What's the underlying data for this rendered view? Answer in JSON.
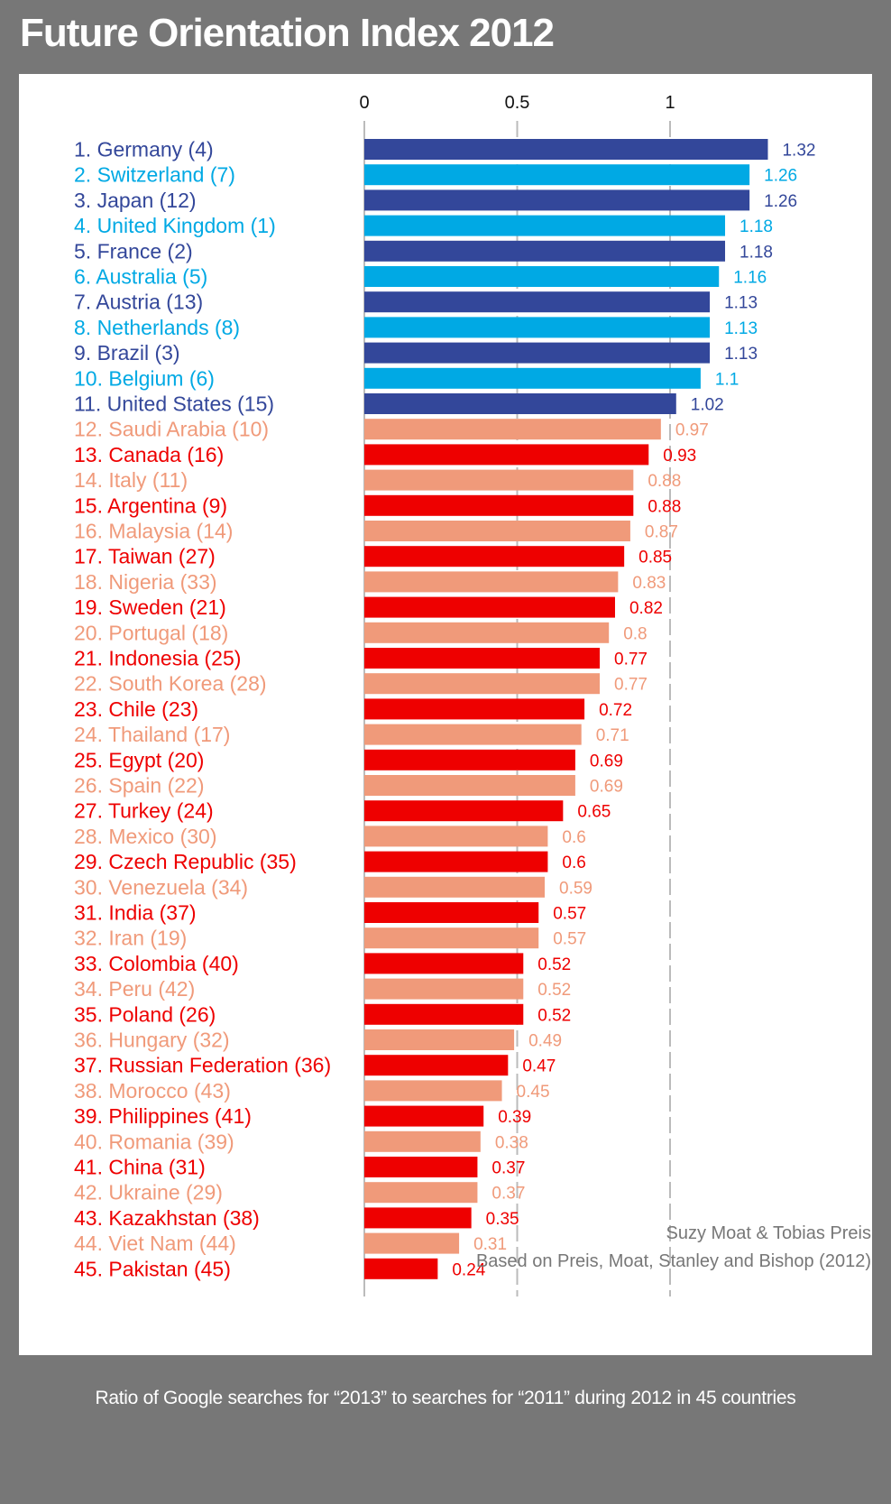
{
  "page": {
    "title": "Future Orientation Index 2012",
    "caption": "Ratio of Google searches for “2013” to searches for “2011” during 2012 in 45 countries",
    "credit_line1": "Suzy Moat & Tobias Preis",
    "credit_line2": "Based on Preis, Moat, Stanley and Bishop (2012)"
  },
  "colors": {
    "background": "#777777",
    "panel": "#ffffff",
    "top_dark": "#33479A",
    "top_light": "#00A9E4",
    "low_dark": "#EE0000",
    "low_light": "#F09A7A",
    "gridline": "#BBBBBB",
    "credit_text": "#777777"
  },
  "chart_data": {
    "type": "bar",
    "orientation": "horizontal",
    "title": "Future Orientation Index 2012",
    "subtitle": "Ratio of Google searches for “2013” to searches for “2011” during 2012 in 45 countries",
    "xlabel": "",
    "ylabel": "",
    "xlim": [
      0,
      1.35
    ],
    "xticks": [
      0,
      0.5,
      1
    ],
    "xtick_labels": [
      "0",
      "0.5",
      "1"
    ],
    "grid": "vertical dashed at ticks",
    "legend": "none",
    "note": "Number in parentheses is rank in 2010; bars above 1 shown in blue, below 1 in red; alternating shades per row",
    "categories": [
      "1. Germany (4)",
      "2. Switzerland (7)",
      "3. Japan (12)",
      "4. United Kingdom (1)",
      "5. France (2)",
      "6. Australia (5)",
      "7. Austria (13)",
      "8. Netherlands (8)",
      "9. Brazil (3)",
      "10. Belgium (6)",
      "11. United States (15)",
      "12. Saudi Arabia (10)",
      "13. Canada (16)",
      "14. Italy (11)",
      "15. Argentina (9)",
      "16. Malaysia (14)",
      "17. Taiwan (27)",
      "18. Nigeria (33)",
      "19. Sweden (21)",
      "20. Portugal (18)",
      "21. Indonesia (25)",
      "22. South Korea (28)",
      "23. Chile (23)",
      "24. Thailand (17)",
      "25. Egypt (20)",
      "26. Spain (22)",
      "27. Turkey (24)",
      "28. Mexico (30)",
      "29. Czech Republic (35)",
      "30. Venezuela (34)",
      "31. India (37)",
      "32. Iran (19)",
      "33. Colombia (40)",
      "34. Peru (42)",
      "35. Poland (26)",
      "36. Hungary (32)",
      "37. Russian Federation (36)",
      "38. Morocco (43)",
      "39. Philippines (41)",
      "40. Romania (39)",
      "41. China (31)",
      "42. Ukraine (29)",
      "43. Kazakhstan (38)",
      "44. Viet Nam (44)",
      "45. Pakistan (45)"
    ],
    "values": [
      1.32,
      1.26,
      1.26,
      1.18,
      1.18,
      1.16,
      1.13,
      1.13,
      1.13,
      1.1,
      1.02,
      0.97,
      0.93,
      0.88,
      0.88,
      0.87,
      0.85,
      0.83,
      0.82,
      0.8,
      0.77,
      0.77,
      0.72,
      0.71,
      0.69,
      0.69,
      0.65,
      0.6,
      0.6,
      0.59,
      0.57,
      0.57,
      0.52,
      0.52,
      0.52,
      0.49,
      0.47,
      0.45,
      0.39,
      0.38,
      0.37,
      0.37,
      0.35,
      0.31,
      0.24
    ],
    "value_labels": [
      "1.32",
      "1.26",
      "1.26",
      "1.18",
      "1.18",
      "1.16",
      "1.13",
      "1.13",
      "1.13",
      "1.1",
      "1.02",
      "0.97",
      "0.93",
      "0.88",
      "0.88",
      "0.87",
      "0.85",
      "0.83",
      "0.82",
      "0.8",
      "0.77",
      "0.77",
      "0.72",
      "0.71",
      "0.69",
      "0.69",
      "0.65",
      "0.6",
      "0.6",
      "0.59",
      "0.57",
      "0.57",
      "0.52",
      "0.52",
      "0.52",
      "0.49",
      "0.47",
      "0.45",
      "0.39",
      "0.38",
      "0.37",
      "0.37",
      "0.35",
      "0.31",
      "0.24"
    ]
  }
}
